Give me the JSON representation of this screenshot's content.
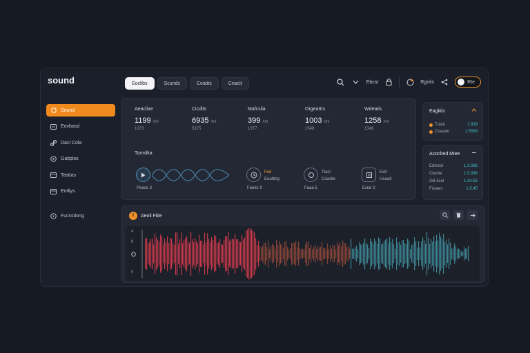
{
  "app": {
    "logo": "sound"
  },
  "tabs": [
    "Eoclibs",
    "Scunds",
    "Ceatits",
    "Cnacit"
  ],
  "header": {
    "stat_label": "Ebcst",
    "user_label": "Rgnits",
    "toggle_label": "Rte"
  },
  "sidebar": {
    "items": [
      {
        "label": "Sound",
        "icon": "sound-icon",
        "active": true
      },
      {
        "label": "Eovbasd",
        "icon": "dashboard-icon"
      },
      {
        "label": "Dacl Cola",
        "icon": "link-icon"
      },
      {
        "label": "Gatiplos",
        "icon": "compass-icon"
      },
      {
        "label": "Tasttas",
        "icon": "archive-icon"
      },
      {
        "label": "Eotliys",
        "icon": "calendar-icon"
      }
    ],
    "extra": {
      "label": "Fucsstiong",
      "icon": "chat-icon"
    }
  },
  "stats": [
    {
      "label": "Aeacliae",
      "value": "1199",
      "unit": "/ml",
      "sub": "1373"
    },
    {
      "label": "Cicdits",
      "value": "6935",
      "unit": "/ml",
      "sub": "5375"
    },
    {
      "label": "Mafcsiia",
      "value": "399",
      "unit": "/ml",
      "sub": "13T7"
    },
    {
      "label": "Orgeattrs",
      "value": "1003",
      "unit": "/ml",
      "sub": "1548"
    },
    {
      "label": "Wdeatis",
      "value": "1258",
      "unit": "/ml",
      "sub": "1348"
    }
  ],
  "timeline": {
    "title": "Tomslka",
    "items": [
      {
        "caption": "Peace 3",
        "icon": "play-icon"
      },
      {
        "caption": "Fanez 9",
        "icon": "clock-icon",
        "side": [
          "Fed",
          "Eeatting"
        ]
      },
      {
        "caption": "Faaa 5",
        "icon": "circle-icon",
        "side": [
          "Tlact",
          "Coaslle"
        ]
      },
      {
        "caption": "Esiar 2",
        "icon": "note-icon",
        "side": [
          "Ealt",
          "Ueaalt"
        ]
      }
    ]
  },
  "panel1": {
    "title": "Eagkiis",
    "rows": [
      {
        "label": "Tulati",
        "value": "1.839",
        "color": "#f0902a"
      },
      {
        "label": "Coaade",
        "value": "1.5559",
        "color": "#f0902a"
      }
    ]
  },
  "panel2": {
    "title": "Aconlted Miee",
    "rows": [
      {
        "label": "Edtseol",
        "value": "1.3.936"
      },
      {
        "label": "Cliartie",
        "value": "1.5.938"
      },
      {
        "label": "OB.5sol",
        "value": "1.34.59"
      },
      {
        "label": "Fistaes",
        "value": "1.5.45"
      }
    ]
  },
  "waveform": {
    "title": "Aeoli Fitie",
    "badge": "I",
    "axis": [
      "4",
      "8",
      "O",
      "0"
    ],
    "colors": {
      "red": "#c9394a",
      "brown": "#8a4538",
      "teal": "#3e8593"
    }
  }
}
